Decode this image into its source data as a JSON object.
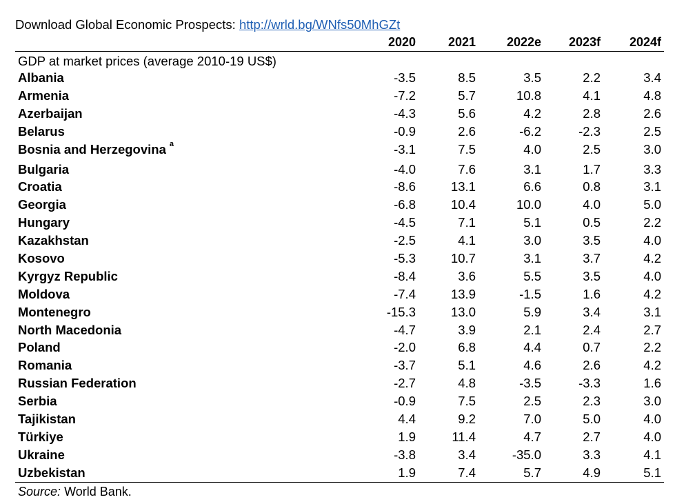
{
  "header": {
    "label": "Download Global Economic Prospects:",
    "link": "http://wrld.bg/WNfs50MhGZt"
  },
  "years": [
    "2020",
    "2021",
    "2022e",
    "2023f",
    "2024f"
  ],
  "subtitle": "GDP at market prices (average 2010-19 US$)",
  "rows": [
    {
      "country": "Albania",
      "note": "",
      "values": [
        "-3.5",
        "8.5",
        "3.5",
        "2.2",
        "3.4"
      ]
    },
    {
      "country": "Armenia",
      "note": "",
      "values": [
        "-7.2",
        "5.7",
        "10.8",
        "4.1",
        "4.8"
      ]
    },
    {
      "country": "Azerbaijan",
      "note": "",
      "values": [
        "-4.3",
        "5.6",
        "4.2",
        "2.8",
        "2.6"
      ]
    },
    {
      "country": "Belarus",
      "note": "",
      "values": [
        "-0.9",
        "2.6",
        "-6.2",
        "-2.3",
        "2.5"
      ]
    },
    {
      "country": "Bosnia and Herzegovina",
      "note": "a",
      "values": [
        "-3.1",
        "7.5",
        "4.0",
        "2.5",
        "3.0"
      ]
    },
    {
      "country": "Bulgaria",
      "note": "",
      "values": [
        "-4.0",
        "7.6",
        "3.1",
        "1.7",
        "3.3"
      ]
    },
    {
      "country": "Croatia",
      "note": "",
      "values": [
        "-8.6",
        "13.1",
        "6.6",
        "0.8",
        "3.1"
      ]
    },
    {
      "country": "Georgia",
      "note": "",
      "values": [
        "-6.8",
        "10.4",
        "10.0",
        "4.0",
        "5.0"
      ]
    },
    {
      "country": "Hungary",
      "note": "",
      "values": [
        "-4.5",
        "7.1",
        "5.1",
        "0.5",
        "2.2"
      ]
    },
    {
      "country": "Kazakhstan",
      "note": "",
      "values": [
        "-2.5",
        "4.1",
        "3.0",
        "3.5",
        "4.0"
      ]
    },
    {
      "country": "Kosovo",
      "note": "",
      "values": [
        "-5.3",
        "10.7",
        "3.1",
        "3.7",
        "4.2"
      ]
    },
    {
      "country": "Kyrgyz Republic",
      "note": "",
      "values": [
        "-8.4",
        "3.6",
        "5.5",
        "3.5",
        "4.0"
      ]
    },
    {
      "country": "Moldova",
      "note": "",
      "values": [
        "-7.4",
        "13.9",
        "-1.5",
        "1.6",
        "4.2"
      ]
    },
    {
      "country": "Montenegro",
      "note": "",
      "values": [
        "-15.3",
        "13.0",
        "5.9",
        "3.4",
        "3.1"
      ]
    },
    {
      "country": "North Macedonia",
      "note": "",
      "values": [
        "-4.7",
        "3.9",
        "2.1",
        "2.4",
        "2.7"
      ]
    },
    {
      "country": "Poland",
      "note": "",
      "values": [
        "-2.0",
        "6.8",
        "4.4",
        "0.7",
        "2.2"
      ]
    },
    {
      "country": "Romania",
      "note": "",
      "values": [
        "-3.7",
        "5.1",
        "4.6",
        "2.6",
        "4.2"
      ]
    },
    {
      "country": "Russian Federation",
      "note": "",
      "values": [
        "-2.7",
        "4.8",
        "-3.5",
        "-3.3",
        "1.6"
      ]
    },
    {
      "country": "Serbia",
      "note": "",
      "values": [
        "-0.9",
        "7.5",
        "2.5",
        "2.3",
        "3.0"
      ]
    },
    {
      "country": "Tajikistan",
      "note": "",
      "values": [
        "4.4",
        "9.2",
        "7.0",
        "5.0",
        "4.0"
      ]
    },
    {
      "country": "Türkiye",
      "note": "",
      "values": [
        "1.9",
        "11.4",
        "4.7",
        "2.7",
        "4.0"
      ]
    },
    {
      "country": "Ukraine",
      "note": "",
      "values": [
        "-3.8",
        "3.4",
        "-35.0",
        "3.3",
        "4.1"
      ]
    },
    {
      "country": "Uzbekistan",
      "note": "",
      "values": [
        "1.9",
        "7.4",
        "5.7",
        "4.9",
        "5.1"
      ]
    }
  ],
  "source": {
    "label": "Source:",
    "text": "World Bank."
  },
  "colors": {
    "link": "#1f5fb4",
    "text": "#000000",
    "background": "#ffffff"
  }
}
